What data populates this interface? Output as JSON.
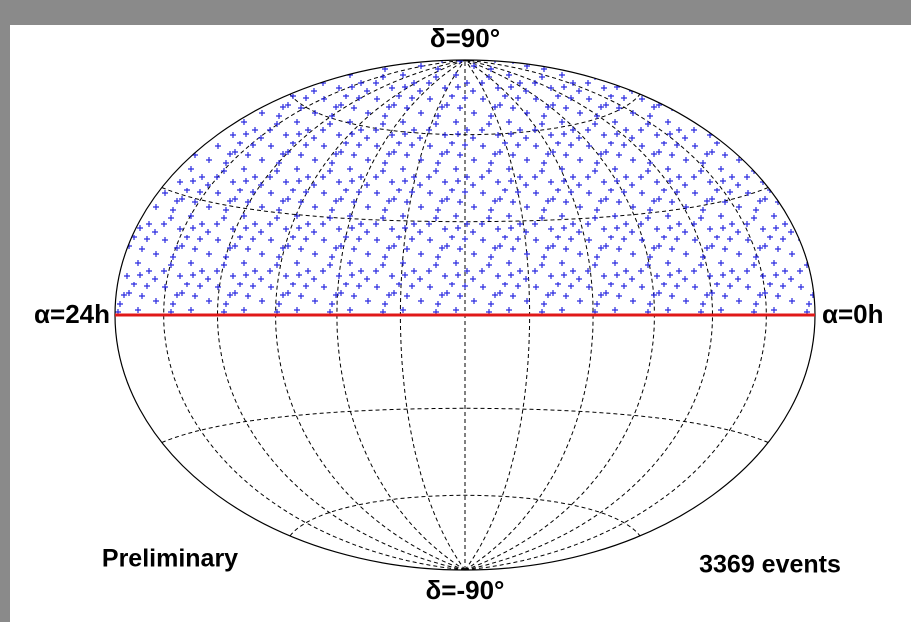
{
  "labels": {
    "north_pole": "δ=90°",
    "south_pole": "δ=-90°",
    "left_edge": "α=24h",
    "right_edge": "α=0h"
  },
  "annotations": {
    "status": "Preliminary",
    "event_count": "3369 events"
  }
}
